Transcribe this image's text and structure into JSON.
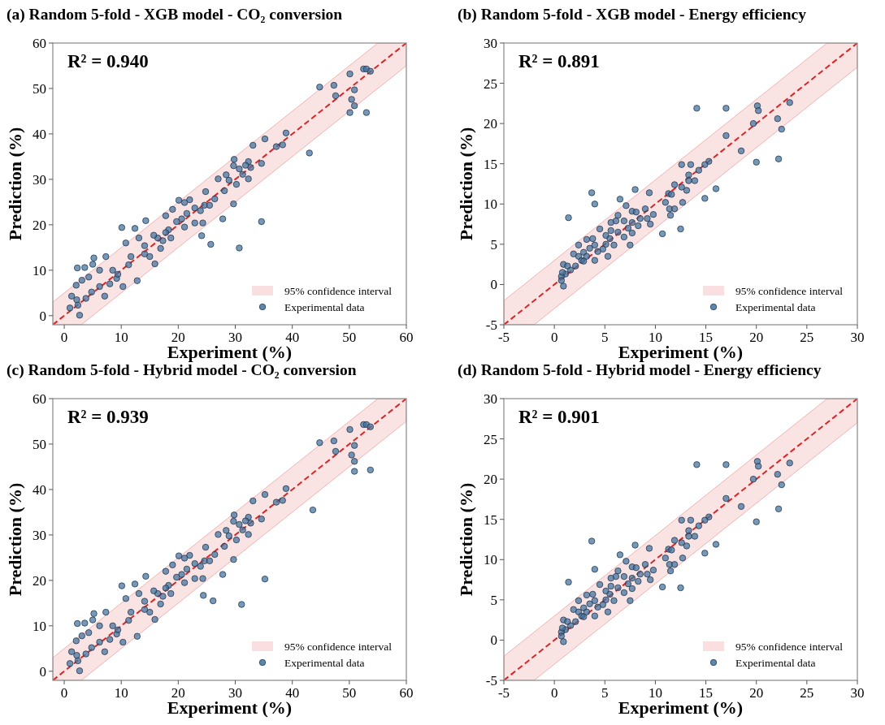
{
  "chart_data": [
    {
      "type": "scatter",
      "title": "(a) Random 5-fold - XGB model - CO₂ conversion",
      "xlabel": "Experiment (%)",
      "ylabel": "Prediction (%)",
      "annotations": [
        "R² = 0.940"
      ],
      "xlim": [
        -2,
        60
      ],
      "ylim": [
        -2,
        60
      ],
      "xticks": [
        0,
        10,
        20,
        30,
        40,
        50,
        60
      ],
      "yticks": [
        0,
        10,
        20,
        30,
        40,
        50,
        60
      ],
      "legend": "bottom right",
      "series": [
        {
          "name": "95% confidence interval",
          "type": "line",
          "line_style": "dashed",
          "color": "#d62728",
          "x": [
            -2,
            3,
            55,
            60
          ],
          "values": [
            -2,
            3,
            55,
            60
          ],
          "lower": [
            -2,
            -2,
            50,
            55
          ],
          "upper": [
            3,
            8,
            60,
            60
          ]
        },
        {
          "name": "Experimental data",
          "marker": "circle",
          "color": "#41729f",
          "x": [
            52.5,
            53.0,
            53.7,
            50.1,
            44.8,
            47.3,
            47.6,
            50.9,
            50.4,
            50.9,
            50.1,
            53.0,
            38.9,
            35.2,
            33.1,
            37.2,
            38.3,
            43.0,
            34.6,
            32.3,
            32.7,
            31.8,
            30.7,
            31.3,
            32.3,
            29.8,
            29.7,
            30.2,
            28.4,
            27.0,
            28.1,
            28.9,
            29.7,
            27.8,
            34.6,
            25.7,
            30.7,
            24.1,
            26.4,
            24.8,
            24.6,
            23.9,
            22.9,
            22.0,
            21.1,
            20.1,
            19.0,
            20.6,
            21.5,
            19.7,
            17.8,
            18.3,
            17.3,
            16.4,
            15.7,
            14.3,
            12.4,
            10.1,
            13.1,
            14.1,
            15.0,
            15.9,
            12.8,
            11.7,
            10.8,
            11.3,
            10.3,
            9.2,
            8.5,
            7.3,
            5.2,
            5.0,
            3.6,
            2.3,
            3.1,
            4.3,
            2.1,
            1.3,
            2.2,
            1.0,
            2.7,
            2.4,
            4.8,
            6.2,
            7.1,
            8.0,
            9.4,
            6.2,
            3.8,
            14.1,
            18.7,
            21.1,
            22.9,
            24.3,
            25.5,
            17.8,
            16.9
          ],
          "values": [
            54.3,
            54.3,
            53.8,
            53.2,
            50.3,
            50.7,
            48.4,
            49.7,
            47.6,
            46.2,
            44.7,
            44.7,
            40.2,
            38.9,
            37.5,
            37.2,
            37.6,
            35.8,
            33.5,
            33.9,
            32.6,
            33.1,
            32.3,
            31.1,
            30.1,
            34.4,
            33.0,
            28.9,
            31.0,
            30.1,
            27.5,
            29.8,
            24.6,
            21.3,
            20.7,
            15.7,
            14.9,
            17.6,
            25.7,
            27.3,
            24.3,
            23.1,
            23.7,
            25.5,
            24.9,
            25.4,
            23.4,
            21.3,
            22.5,
            20.7,
            22.0,
            18.9,
            16.5,
            17.1,
            17.7,
            20.9,
            19.2,
            19.4,
            17.1,
            15.4,
            13.0,
            11.4,
            7.7,
            13.0,
            16.0,
            11.2,
            6.4,
            8.2,
            10.0,
            13.0,
            12.7,
            11.3,
            10.6,
            10.5,
            7.8,
            8.5,
            6.7,
            4.3,
            3.5,
            1.7,
            0.1,
            2.3,
            5.2,
            6.4,
            4.3,
            7.0,
            9.1,
            10.0,
            3.8,
            13.6,
            17.1,
            19.5,
            20.4,
            20.4,
            24.3,
            18.3,
            14.8
          ]
        }
      ]
    },
    {
      "type": "scatter",
      "title": "(b) Random 5-fold - XGB model - Energy efficiency",
      "xlabel": "Experiment (%)",
      "ylabel": "Prediction (%)",
      "annotations": [
        "R² = 0.891"
      ],
      "xlim": [
        -5,
        30
      ],
      "ylim": [
        -5,
        30
      ],
      "xticks": [
        -5,
        0,
        5,
        10,
        15,
        20,
        25,
        30
      ],
      "yticks": [
        -5,
        0,
        5,
        10,
        15,
        20,
        25,
        30
      ],
      "legend": "bottom right",
      "series": [
        {
          "name": "95% confidence interval",
          "type": "line",
          "line_style": "dashed",
          "color": "#d62728",
          "x": [
            -5,
            -2,
            27,
            30
          ],
          "values": [
            -5,
            -2,
            27,
            30
          ],
          "lower": [
            -5,
            -5,
            24,
            27
          ],
          "upper": [
            -2,
            1,
            30,
            30
          ]
        },
        {
          "name": "Experimental data",
          "marker": "circle",
          "color": "#41729f",
          "x": [
            14.1,
            17.0,
            20.1,
            20.2,
            23.3,
            19.7,
            22.1,
            22.5,
            17.0,
            18.5,
            20.0,
            22.2,
            16.0,
            14.9,
            15.3,
            14.9,
            14.3,
            13.5,
            12.6,
            13.3,
            13.3,
            13.9,
            13.1,
            12.6,
            11.9,
            11.3,
            11.6,
            11.0,
            11.4,
            11.5,
            11.9,
            12.7,
            12.5,
            10.7,
            9.4,
            8.0,
            6.5,
            3.7,
            4.0,
            1.4,
            9.8,
            9.0,
            9.2,
            9.5,
            8.3,
            8.5,
            7.7,
            8.1,
            7.1,
            7.7,
            7.3,
            7.7,
            7.5,
            6.9,
            6.3,
            6.1,
            5.6,
            5.6,
            4.5,
            3.2,
            3.8,
            5.1,
            5.5,
            5.9,
            5.1,
            4.8,
            5.3,
            4.3,
            3.5,
            2.9,
            2.4,
            1.9,
            2.7,
            2.1,
            1.6,
            1.1,
            0.9,
            0.7,
            0.7,
            0.9,
            0.8,
            1.3,
            3.2,
            4.0,
            6.3,
            6.9,
            4.0,
            2.4,
            2.9
          ],
          "values": [
            21.9,
            21.9,
            22.2,
            21.6,
            22.6,
            20.0,
            20.6,
            19.3,
            18.5,
            16.6,
            15.2,
            15.6,
            11.9,
            10.7,
            15.3,
            14.9,
            14.2,
            14.9,
            14.9,
            13.6,
            12.9,
            12.9,
            11.7,
            12.1,
            12.4,
            11.3,
            11.2,
            10.2,
            9.4,
            8.6,
            9.4,
            10.2,
            6.9,
            6.3,
            11.4,
            11.8,
            10.6,
            11.4,
            10.0,
            8.3,
            8.7,
            9.4,
            8.2,
            7.5,
            7.3,
            8.2,
            9.1,
            9.0,
            9.8,
            7.7,
            7.0,
            6.4,
            4.9,
            7.9,
            8.6,
            7.9,
            7.7,
            6.7,
            6.9,
            5.6,
            5.7,
            6.1,
            5.7,
            4.9,
            5.0,
            4.4,
            3.5,
            4.1,
            4.5,
            4.0,
            3.5,
            3.8,
            3.0,
            2.3,
            1.8,
            1.3,
            2.5,
            1.0,
            0.5,
            -0.2,
            1.5,
            2.3,
            3.5,
            4.9,
            6.5,
            5.9,
            3.0,
            4.9,
            2.9
          ]
        }
      ]
    },
    {
      "type": "scatter",
      "title": "(c) Random 5-fold - Hybrid model - CO₂ conversion",
      "xlabel": "Experiment (%)",
      "ylabel": "Prediction (%)",
      "annotations": [
        "R² = 0.939"
      ],
      "xlim": [
        -2,
        60
      ],
      "ylim": [
        -2,
        60
      ],
      "xticks": [
        0,
        10,
        20,
        30,
        40,
        50,
        60
      ],
      "yticks": [
        0,
        10,
        20,
        30,
        40,
        50,
        60
      ],
      "legend": "bottom right",
      "series": [
        {
          "name": "95% confidence interval",
          "type": "line",
          "line_style": "dashed",
          "color": "#d62728",
          "x": [
            -2,
            3,
            55,
            60
          ],
          "values": [
            -2,
            3,
            55,
            60
          ],
          "lower": [
            -2,
            -2,
            50,
            55
          ],
          "upper": [
            3,
            8,
            60,
            60
          ]
        },
        {
          "name": "Experimental data",
          "marker": "circle",
          "color": "#41729f",
          "x": [
            52.5,
            53.0,
            53.7,
            50.1,
            44.8,
            47.3,
            47.6,
            50.9,
            50.4,
            50.9,
            50.9,
            53.7,
            38.9,
            35.2,
            33.1,
            37.2,
            38.3,
            43.6,
            34.6,
            32.3,
            32.7,
            31.8,
            30.7,
            31.3,
            32.3,
            29.8,
            29.7,
            30.2,
            28.4,
            27.0,
            28.1,
            28.9,
            29.7,
            27.8,
            35.2,
            26.1,
            31.1,
            24.4,
            26.4,
            24.8,
            24.6,
            23.9,
            22.9,
            22.0,
            21.1,
            20.1,
            19.0,
            20.6,
            21.5,
            19.7,
            17.8,
            18.3,
            17.3,
            16.4,
            15.7,
            14.3,
            12.4,
            10.1,
            13.1,
            14.1,
            15.0,
            15.9,
            12.8,
            11.7,
            10.8,
            11.3,
            10.3,
            9.2,
            8.5,
            7.3,
            5.2,
            5.0,
            3.6,
            2.3,
            3.1,
            4.3,
            2.1,
            1.3,
            2.2,
            1.0,
            2.7,
            2.4,
            4.8,
            6.2,
            7.1,
            8.0,
            9.4,
            6.2,
            3.8,
            14.1,
            18.7,
            21.1,
            22.9,
            24.3,
            25.5,
            17.8,
            16.9
          ],
          "values": [
            54.3,
            54.3,
            53.8,
            53.2,
            50.3,
            50.7,
            48.4,
            49.7,
            47.6,
            46.2,
            44.0,
            44.3,
            40.2,
            38.9,
            37.5,
            37.2,
            37.6,
            35.5,
            33.5,
            33.9,
            32.6,
            33.1,
            32.3,
            31.1,
            30.1,
            34.4,
            33.0,
            28.9,
            31.0,
            30.1,
            27.5,
            29.8,
            24.6,
            21.3,
            20.3,
            15.5,
            14.7,
            16.7,
            25.7,
            27.3,
            24.3,
            23.1,
            23.7,
            25.5,
            24.9,
            25.4,
            23.4,
            21.3,
            22.5,
            20.7,
            22.0,
            18.9,
            16.5,
            17.1,
            17.7,
            20.9,
            19.2,
            18.8,
            17.1,
            15.4,
            13.0,
            11.4,
            7.7,
            13.0,
            16.0,
            11.2,
            6.4,
            8.2,
            10.0,
            13.0,
            12.7,
            11.3,
            10.6,
            10.5,
            7.8,
            8.5,
            6.7,
            4.3,
            3.5,
            1.7,
            0.1,
            2.3,
            5.2,
            6.4,
            4.3,
            7.0,
            9.1,
            10.0,
            3.8,
            13.6,
            17.1,
            19.5,
            20.4,
            20.4,
            24.3,
            18.3,
            14.8
          ]
        }
      ]
    },
    {
      "type": "scatter",
      "title": "(d) Random 5-fold - Hybrid model - Energy efficiency",
      "xlabel": "Experiment (%)",
      "ylabel": "Prediction (%)",
      "annotations": [
        "R² = 0.901"
      ],
      "xlim": [
        -5,
        30
      ],
      "ylim": [
        -5,
        30
      ],
      "xticks": [
        -5,
        0,
        5,
        10,
        15,
        20,
        25,
        30
      ],
      "yticks": [
        -5,
        0,
        5,
        10,
        15,
        20,
        25,
        30
      ],
      "legend": "bottom right",
      "series": [
        {
          "name": "95% confidence interval",
          "type": "line",
          "line_style": "dashed",
          "color": "#d62728",
          "x": [
            -5,
            -2,
            27,
            30
          ],
          "values": [
            -5,
            -2,
            27,
            30
          ],
          "lower": [
            -5,
            -5,
            24,
            27
          ],
          "upper": [
            -2,
            1,
            30,
            30
          ]
        },
        {
          "name": "Experimental data",
          "marker": "circle",
          "color": "#41729f",
          "x": [
            14.1,
            17.0,
            20.1,
            20.2,
            23.3,
            19.7,
            22.1,
            22.5,
            17.0,
            18.5,
            20.0,
            22.2,
            16.0,
            14.9,
            15.3,
            14.9,
            14.3,
            13.5,
            12.6,
            13.3,
            13.3,
            13.9,
            13.1,
            12.6,
            11.9,
            11.3,
            11.6,
            11.0,
            11.4,
            11.5,
            11.9,
            12.7,
            12.5,
            10.7,
            9.4,
            8.0,
            6.5,
            3.7,
            4.0,
            1.4,
            9.8,
            9.0,
            9.2,
            9.5,
            8.3,
            8.5,
            7.7,
            8.1,
            7.1,
            7.7,
            7.3,
            7.7,
            7.5,
            6.9,
            6.3,
            6.1,
            5.6,
            5.6,
            4.5,
            3.2,
            3.8,
            5.1,
            5.5,
            5.9,
            5.1,
            4.8,
            5.3,
            4.3,
            3.5,
            2.9,
            2.4,
            1.9,
            2.7,
            2.1,
            1.6,
            1.1,
            0.9,
            0.7,
            0.7,
            0.9,
            0.8,
            1.3,
            3.2,
            4.0,
            6.3,
            6.9,
            4.0,
            2.4,
            2.9
          ],
          "values": [
            21.8,
            21.8,
            22.2,
            21.6,
            22.0,
            20.0,
            20.6,
            19.3,
            17.6,
            16.6,
            14.7,
            16.3,
            11.9,
            10.8,
            15.3,
            14.9,
            14.2,
            14.9,
            14.9,
            13.6,
            12.9,
            12.9,
            11.7,
            12.1,
            12.4,
            11.3,
            11.2,
            10.2,
            9.4,
            8.6,
            9.4,
            10.2,
            6.5,
            6.6,
            11.4,
            11.8,
            10.6,
            12.3,
            8.8,
            7.2,
            8.7,
            9.4,
            8.2,
            7.5,
            7.3,
            8.2,
            9.1,
            9.0,
            9.8,
            7.7,
            7.0,
            6.4,
            4.9,
            7.9,
            8.6,
            7.9,
            7.7,
            6.7,
            6.9,
            5.6,
            5.7,
            6.1,
            5.7,
            4.9,
            5.0,
            4.4,
            3.5,
            4.1,
            4.5,
            4.0,
            3.5,
            3.8,
            3.0,
            2.3,
            1.8,
            1.3,
            2.5,
            1.0,
            0.5,
            -0.2,
            1.5,
            2.3,
            3.5,
            4.9,
            6.5,
            5.9,
            3.0,
            4.9,
            2.9
          ]
        }
      ]
    }
  ]
}
